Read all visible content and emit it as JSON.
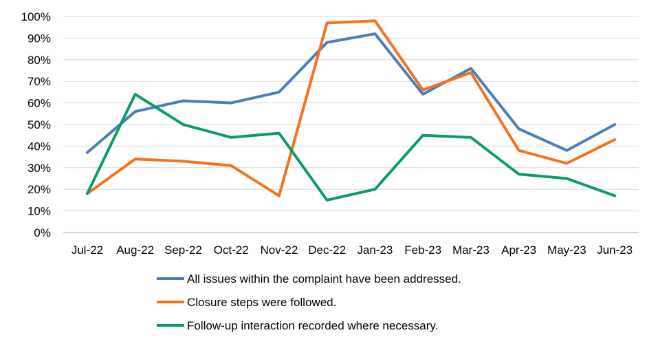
{
  "chart_data": {
    "type": "line",
    "categories": [
      "Jul-22",
      "Aug-22",
      "Sep-22",
      "Oct-22",
      "Nov-22",
      "Dec-22",
      "Jan-23",
      "Feb-23",
      "Mar-23",
      "Apr-23",
      "May-23",
      "Jun-23"
    ],
    "y_ticks": [
      "0%",
      "10%",
      "20%",
      "30%",
      "40%",
      "50%",
      "60%",
      "70%",
      "80%",
      "90%",
      "100%"
    ],
    "ylim": [
      0,
      100
    ],
    "grid": true,
    "legend_position": "bottom",
    "series": [
      {
        "name": "All issues within the complaint have been addressed.",
        "color": "#4a7ebb",
        "values": [
          37,
          56,
          61,
          60,
          65,
          88,
          92,
          64,
          76,
          48,
          38,
          50
        ]
      },
      {
        "name": "Closure steps were followed.",
        "color": "#f7711c",
        "values": [
          18,
          34,
          33,
          31,
          17,
          97,
          98,
          66,
          74,
          38,
          32,
          43
        ]
      },
      {
        "name": "Follow-up interaction recorded where necessary.",
        "color": "#0a9b6c",
        "values": [
          18,
          64,
          50,
          44,
          46,
          15,
          20,
          45,
          44,
          27,
          25,
          17
        ]
      }
    ]
  }
}
